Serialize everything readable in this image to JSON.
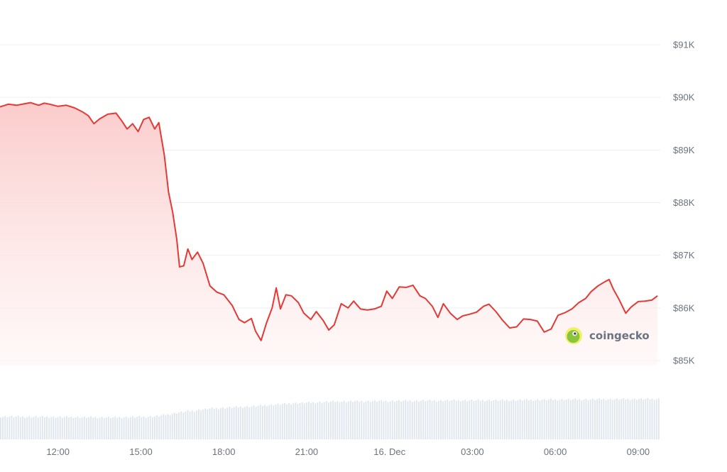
{
  "chart_data": {
    "type": "area",
    "ylim": [
      84700,
      91500
    ],
    "y_ticks": [
      {
        "value": 91000,
        "label": "$91K"
      },
      {
        "value": 90000,
        "label": "$90K"
      },
      {
        "value": 89000,
        "label": "$89K"
      },
      {
        "value": 88000,
        "label": "$88K"
      },
      {
        "value": 87000,
        "label": "$87K"
      },
      {
        "value": 86000,
        "label": "$86K"
      },
      {
        "value": 85000,
        "label": "$85K"
      }
    ],
    "x_ticks": [
      "12:00",
      "15:00",
      "18:00",
      "21:00",
      "16. Dec",
      "03:00",
      "06:00",
      "09:00"
    ],
    "x_tick_hours": [
      12,
      15,
      18,
      21,
      24,
      27,
      30,
      33
    ],
    "x_range_hours": [
      9.9,
      33.8
    ],
    "series": [
      {
        "color": "#e53935",
        "points": [
          [
            9.9,
            89820
          ],
          [
            10.2,
            89870
          ],
          [
            10.5,
            89850
          ],
          [
            10.8,
            89880
          ],
          [
            11.0,
            89900
          ],
          [
            11.3,
            89850
          ],
          [
            11.5,
            89890
          ],
          [
            11.7,
            89870
          ],
          [
            12.0,
            89830
          ],
          [
            12.3,
            89850
          ],
          [
            12.6,
            89800
          ],
          [
            12.9,
            89720
          ],
          [
            13.1,
            89650
          ],
          [
            13.3,
            89500
          ],
          [
            13.5,
            89590
          ],
          [
            13.8,
            89680
          ],
          [
            14.1,
            89700
          ],
          [
            14.3,
            89560
          ],
          [
            14.5,
            89400
          ],
          [
            14.7,
            89500
          ],
          [
            14.9,
            89350
          ],
          [
            15.1,
            89580
          ],
          [
            15.3,
            89620
          ],
          [
            15.5,
            89400
          ],
          [
            15.65,
            89520
          ],
          [
            15.85,
            88900
          ],
          [
            16.0,
            88200
          ],
          [
            16.15,
            87820
          ],
          [
            16.3,
            87300
          ],
          [
            16.4,
            86780
          ],
          [
            16.55,
            86800
          ],
          [
            16.7,
            87120
          ],
          [
            16.85,
            86920
          ],
          [
            17.05,
            87060
          ],
          [
            17.25,
            86850
          ],
          [
            17.5,
            86420
          ],
          [
            17.75,
            86300
          ],
          [
            18.0,
            86250
          ],
          [
            18.3,
            86050
          ],
          [
            18.55,
            85780
          ],
          [
            18.75,
            85720
          ],
          [
            19.0,
            85800
          ],
          [
            19.15,
            85560
          ],
          [
            19.35,
            85380
          ],
          [
            19.55,
            85720
          ],
          [
            19.75,
            86000
          ],
          [
            19.9,
            86380
          ],
          [
            20.05,
            85980
          ],
          [
            20.25,
            86250
          ],
          [
            20.45,
            86230
          ],
          [
            20.7,
            86100
          ],
          [
            20.9,
            85900
          ],
          [
            21.15,
            85780
          ],
          [
            21.35,
            85930
          ],
          [
            21.6,
            85760
          ],
          [
            21.8,
            85580
          ],
          [
            22.0,
            85680
          ],
          [
            22.25,
            86080
          ],
          [
            22.5,
            86000
          ],
          [
            22.7,
            86130
          ],
          [
            22.95,
            85980
          ],
          [
            23.2,
            85960
          ],
          [
            23.45,
            85980
          ],
          [
            23.7,
            86030
          ],
          [
            23.9,
            86320
          ],
          [
            24.1,
            86180
          ],
          [
            24.35,
            86400
          ],
          [
            24.6,
            86390
          ],
          [
            24.85,
            86430
          ],
          [
            25.1,
            86230
          ],
          [
            25.3,
            86180
          ],
          [
            25.55,
            86030
          ],
          [
            25.75,
            85820
          ],
          [
            25.95,
            86080
          ],
          [
            26.2,
            85900
          ],
          [
            26.45,
            85780
          ],
          [
            26.65,
            85850
          ],
          [
            26.9,
            85880
          ],
          [
            27.15,
            85920
          ],
          [
            27.4,
            86030
          ],
          [
            27.6,
            86070
          ],
          [
            27.85,
            85930
          ],
          [
            28.1,
            85760
          ],
          [
            28.35,
            85620
          ],
          [
            28.6,
            85640
          ],
          [
            28.85,
            85790
          ],
          [
            29.1,
            85780
          ],
          [
            29.35,
            85750
          ],
          [
            29.6,
            85540
          ],
          [
            29.85,
            85600
          ],
          [
            30.1,
            85860
          ],
          [
            30.35,
            85910
          ],
          [
            30.6,
            85980
          ],
          [
            30.85,
            86100
          ],
          [
            31.1,
            86180
          ],
          [
            31.3,
            86310
          ],
          [
            31.55,
            86420
          ],
          [
            31.8,
            86500
          ],
          [
            31.95,
            86540
          ],
          [
            32.1,
            86360
          ],
          [
            32.3,
            86170
          ],
          [
            32.55,
            85900
          ],
          [
            32.75,
            86020
          ],
          [
            33.0,
            86120
          ],
          [
            33.25,
            86130
          ],
          [
            33.5,
            86150
          ],
          [
            33.7,
            86230
          ]
        ]
      }
    ],
    "volume": {
      "color": "#dfe6ee",
      "bar_count": 300,
      "x_range_hours": [
        9.9,
        33.8
      ],
      "relative_height_keyframes": [
        [
          9.9,
          0.52
        ],
        [
          12.0,
          0.51
        ],
        [
          14.0,
          0.5
        ],
        [
          15.5,
          0.52
        ],
        [
          16.5,
          0.62
        ],
        [
          17.5,
          0.7
        ],
        [
          19.0,
          0.75
        ],
        [
          20.5,
          0.82
        ],
        [
          22.0,
          0.86
        ],
        [
          25.0,
          0.88
        ],
        [
          28.0,
          0.89
        ],
        [
          31.0,
          0.91
        ],
        [
          33.8,
          0.92
        ]
      ]
    },
    "grid": true,
    "legend": "none"
  },
  "watermark": {
    "text": "coingecko",
    "icon": "gecko-logo-icon"
  },
  "colors": {
    "line": "#e53935",
    "area_top": "#fbc9c9",
    "area_bottom": "#fff5f5",
    "grid": "#eceff3",
    "volume": "#dfe6ee",
    "tick_text": "#6b7280",
    "logo_green": "#8bc53f",
    "logo_yellow": "#f2f069"
  }
}
